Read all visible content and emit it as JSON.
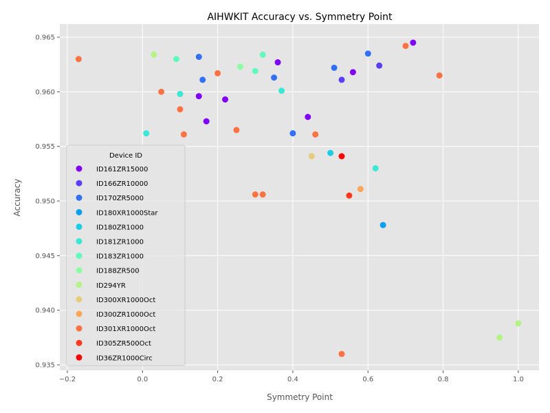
{
  "chart_data": {
    "type": "scatter",
    "title": "AIHWKIT Accuracy vs. Symmetry Point",
    "xlabel": "Symmetry Point",
    "ylabel": "Accuracy",
    "xlim": [
      -0.22,
      1.055
    ],
    "ylim": [
      0.9345,
      0.9662
    ],
    "xticks": [
      -0.2,
      0.0,
      0.2,
      0.4,
      0.6,
      0.8,
      1.0
    ],
    "xtick_labels": [
      "−0.2",
      "0.0",
      "0.2",
      "0.4",
      "0.6",
      "0.8",
      "1.0"
    ],
    "yticks": [
      0.935,
      0.94,
      0.945,
      0.95,
      0.955,
      0.96,
      0.965
    ],
    "ytick_labels": [
      "0.935",
      "0.940",
      "0.945",
      "0.950",
      "0.955",
      "0.960",
      "0.965"
    ],
    "grid": true,
    "legend_title": "Device ID",
    "legend_position": "center-left",
    "series": [
      {
        "name": "ID161ZR15000",
        "color": "#8000ff",
        "points": [
          [
            0.72,
            0.9645
          ],
          [
            0.36,
            0.9627
          ],
          [
            0.56,
            0.9618
          ],
          [
            0.15,
            0.9596
          ],
          [
            0.22,
            0.9593
          ],
          [
            0.44,
            0.9577
          ],
          [
            0.17,
            0.9573
          ]
        ]
      },
      {
        "name": "ID166ZR10000",
        "color": "#5b3ef8",
        "points": [
          [
            0.63,
            0.9624
          ],
          [
            0.53,
            0.9611
          ]
        ]
      },
      {
        "name": "ID170ZR5000",
        "color": "#3171f9",
        "points": [
          [
            0.6,
            0.9635
          ],
          [
            0.15,
            0.9632
          ],
          [
            0.51,
            0.9622
          ],
          [
            0.35,
            0.9613
          ],
          [
            0.16,
            0.9611
          ],
          [
            0.4,
            0.9562
          ]
        ]
      },
      {
        "name": "ID180XR1000Star",
        "color": "#07a0f0",
        "points": [
          [
            0.64,
            0.9478
          ]
        ]
      },
      {
        "name": "ID180ZR1000",
        "color": "#18cde4",
        "points": [
          [
            0.5,
            0.9544
          ]
        ]
      },
      {
        "name": "ID181ZR1000",
        "color": "#3ae8d3",
        "points": [
          [
            0.37,
            0.9601
          ],
          [
            0.1,
            0.9598
          ],
          [
            0.01,
            0.9562
          ],
          [
            0.62,
            0.953
          ]
        ]
      },
      {
        "name": "ID183ZR1000",
        "color": "#62fabc",
        "points": [
          [
            0.32,
            0.9634
          ],
          [
            0.09,
            0.963
          ],
          [
            0.3,
            0.9619
          ]
        ]
      },
      {
        "name": "ID188ZR500",
        "color": "#8cfea4",
        "points": [
          [
            0.26,
            0.9623
          ]
        ]
      },
      {
        "name": "ID294YR",
        "color": "#b4f386",
        "points": [
          [
            0.03,
            0.9634
          ],
          [
            1.0,
            0.9388
          ],
          [
            0.95,
            0.9375
          ]
        ]
      },
      {
        "name": "ID300XR1000Oct",
        "color": "#e6cc7a",
        "points": [
          [
            0.45,
            0.9541
          ]
        ]
      },
      {
        "name": "ID300ZR1000Oct",
        "color": "#ffa55a",
        "points": [
          [
            0.58,
            0.9511
          ]
        ]
      },
      {
        "name": "ID301XR1000Oct",
        "color": "#ff7342",
        "points": [
          [
            -0.17,
            0.963
          ],
          [
            0.7,
            0.9642
          ],
          [
            0.2,
            0.9617
          ],
          [
            0.79,
            0.9615
          ],
          [
            0.05,
            0.96
          ],
          [
            0.1,
            0.9584
          ],
          [
            0.25,
            0.9565
          ],
          [
            0.11,
            0.9561
          ],
          [
            0.46,
            0.9561
          ],
          [
            0.3,
            0.9506
          ],
          [
            0.32,
            0.9506
          ],
          [
            0.53,
            0.936
          ]
        ]
      },
      {
        "name": "ID305ZR500Oct",
        "color": "#ff3a20",
        "points": [
          [
            0.55,
            0.9505
          ]
        ]
      },
      {
        "name": "ID36ZR1000Circ",
        "color": "#ff0000",
        "points": [
          [
            0.53,
            0.9541
          ]
        ]
      }
    ]
  }
}
